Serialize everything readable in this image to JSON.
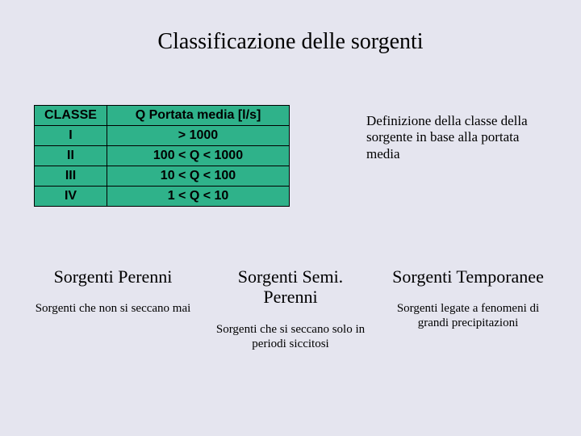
{
  "title": "Classificazione delle sorgenti",
  "table": {
    "header_classe": "CLASSE",
    "header_portata": "Q Portata media [l/s]",
    "rows": [
      {
        "classe": "I",
        "portata": "> 1000"
      },
      {
        "classe": "II",
        "portata": "100 < Q < 1000"
      },
      {
        "classe": "III",
        "portata": "10 < Q < 100"
      },
      {
        "classe": "IV",
        "portata": "1 < Q < 10"
      }
    ],
    "bg_color": "#2fb28a",
    "border_color": "#000000"
  },
  "definition": "Definizione della classe della sorgente in base alla portata media",
  "categories": [
    {
      "title": "Sorgenti Perenni",
      "desc": "Sorgenti che non si seccano mai"
    },
    {
      "title": "Sorgenti Semi. Perenni",
      "desc": "Sorgenti che si seccano solo in periodi siccitosi"
    },
    {
      "title": "Sorgenti Temporanee",
      "desc": "Sorgenti legate a fenomeni di grandi precipitazioni"
    }
  ],
  "colors": {
    "page_bg": "#e5e5ef",
    "text": "#000000"
  },
  "fonts": {
    "title_size_pt": 21,
    "table_size_pt": 12,
    "definition_size_pt": 13,
    "cat_title_size_pt": 17,
    "cat_desc_size_pt": 11
  }
}
